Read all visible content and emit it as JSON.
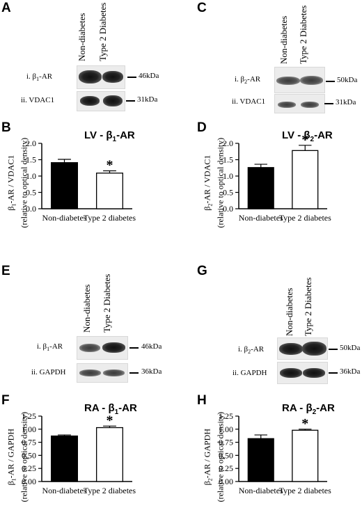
{
  "panels": {
    "A": {
      "letter": "A",
      "columns": [
        "Non-diabetes",
        "Type 2 Diabetes"
      ],
      "rows": [
        {
          "label_prefix": "i. β",
          "label_sub": "1",
          "label_suffix": "-AR",
          "kda": "46kDa"
        },
        {
          "label_prefix": "ii. VDAC1",
          "label_sub": "",
          "label_suffix": "",
          "kda": "31kDa"
        }
      ]
    },
    "C": {
      "letter": "C",
      "columns": [
        "Non-diabetes",
        "Type 2 Diabetes"
      ],
      "rows": [
        {
          "label_prefix": "i. β",
          "label_sub": "2",
          "label_suffix": "-AR",
          "kda": "50kDa"
        },
        {
          "label_prefix": "ii. VDAC1",
          "label_sub": "",
          "label_suffix": "",
          "kda": "31kDa"
        }
      ]
    },
    "E": {
      "letter": "E",
      "columns": [
        "Non-diabetes",
        "Type 2 Diabetes"
      ],
      "rows": [
        {
          "label_prefix": "i. β",
          "label_sub": "1",
          "label_suffix": "-AR",
          "kda": "46kDa"
        },
        {
          "label_prefix": "ii. GAPDH",
          "label_sub": "",
          "label_suffix": "",
          "kda": "36kDa"
        }
      ]
    },
    "G": {
      "letter": "G",
      "columns": [
        "Non-diabetes",
        "Type 2 Diabetes"
      ],
      "rows": [
        {
          "label_prefix": "i. β",
          "label_sub": "2",
          "label_suffix": "-AR",
          "kda": "50kDa"
        },
        {
          "label_prefix": "ii. GAPDH",
          "label_sub": "",
          "label_suffix": "",
          "kda": "36kDa"
        }
      ]
    }
  },
  "chart_data": [
    {
      "letter": "B",
      "type": "bar",
      "title_prefix": "LV - β",
      "title_sub": "1",
      "title_suffix": "-AR",
      "ylabel_line1_prefix": "β",
      "ylabel_line1_sub": "1",
      "ylabel_line1_suffix": "-AR / VDAC1",
      "ylabel_line2": "(relative to optical density)",
      "categories": [
        "Non-diabetes",
        "Type 2 diabetes"
      ],
      "values": [
        1.41,
        1.09
      ],
      "errors": [
        0.1,
        0.07
      ],
      "significance": [
        "",
        "*"
      ],
      "ylim": [
        0,
        2.0
      ],
      "yticks": [
        "0.0",
        "0.5",
        "1.0",
        "1.5",
        "2.0"
      ],
      "fill_colors": [
        "#000000",
        "#ffffff"
      ]
    },
    {
      "letter": "D",
      "type": "bar",
      "title_prefix": "LV - β",
      "title_sub": "2",
      "title_suffix": "-AR",
      "ylabel_line1_prefix": "β",
      "ylabel_line1_sub": "2",
      "ylabel_line1_suffix": "-AR / VDAC1",
      "ylabel_line2": "(relative to optical density)",
      "categories": [
        "Non-diabetes",
        "Type 2 diabetes"
      ],
      "values": [
        1.26,
        1.78
      ],
      "errors": [
        0.1,
        0.16
      ],
      "significance": [
        "",
        "*"
      ],
      "ylim": [
        0,
        2.0
      ],
      "yticks": [
        "0.0",
        "0.5",
        "1.0",
        "1.5",
        "2.0"
      ],
      "fill_colors": [
        "#000000",
        "#ffffff"
      ]
    },
    {
      "letter": "F",
      "type": "bar",
      "title_prefix": "RA - β",
      "title_sub": "1",
      "title_suffix": "-AR",
      "ylabel_line1_prefix": "β",
      "ylabel_line1_sub": "1",
      "ylabel_line1_suffix": "-AR / GAPDH",
      "ylabel_line2": "(relative to optical density)",
      "categories": [
        "Non-diabetes",
        "Type 2 diabetes"
      ],
      "values": [
        0.87,
        1.03
      ],
      "errors": [
        0.02,
        0.03
      ],
      "significance": [
        "",
        "*"
      ],
      "ylim": [
        0,
        1.25
      ],
      "yticks": [
        "0.00",
        "0.25",
        "0.50",
        "0.75",
        "1.00",
        "1.25"
      ],
      "fill_colors": [
        "#000000",
        "#ffffff"
      ]
    },
    {
      "letter": "H",
      "type": "bar",
      "title_prefix": "RA - β",
      "title_sub": "2",
      "title_suffix": "-AR",
      "ylabel_line1_prefix": "β",
      "ylabel_line1_sub": "2",
      "ylabel_line1_suffix": "-AR / GAPDH",
      "ylabel_line2": "(relative to optical density)",
      "categories": [
        "Non-diabetes",
        "Type 2 diabetes"
      ],
      "values": [
        0.82,
        0.98
      ],
      "errors": [
        0.07,
        0.02
      ],
      "significance": [
        "",
        "*"
      ],
      "ylim": [
        0,
        1.25
      ],
      "yticks": [
        "0.00",
        "0.25",
        "0.50",
        "0.75",
        "1.00",
        "1.25"
      ],
      "fill_colors": [
        "#000000",
        "#ffffff"
      ]
    }
  ]
}
